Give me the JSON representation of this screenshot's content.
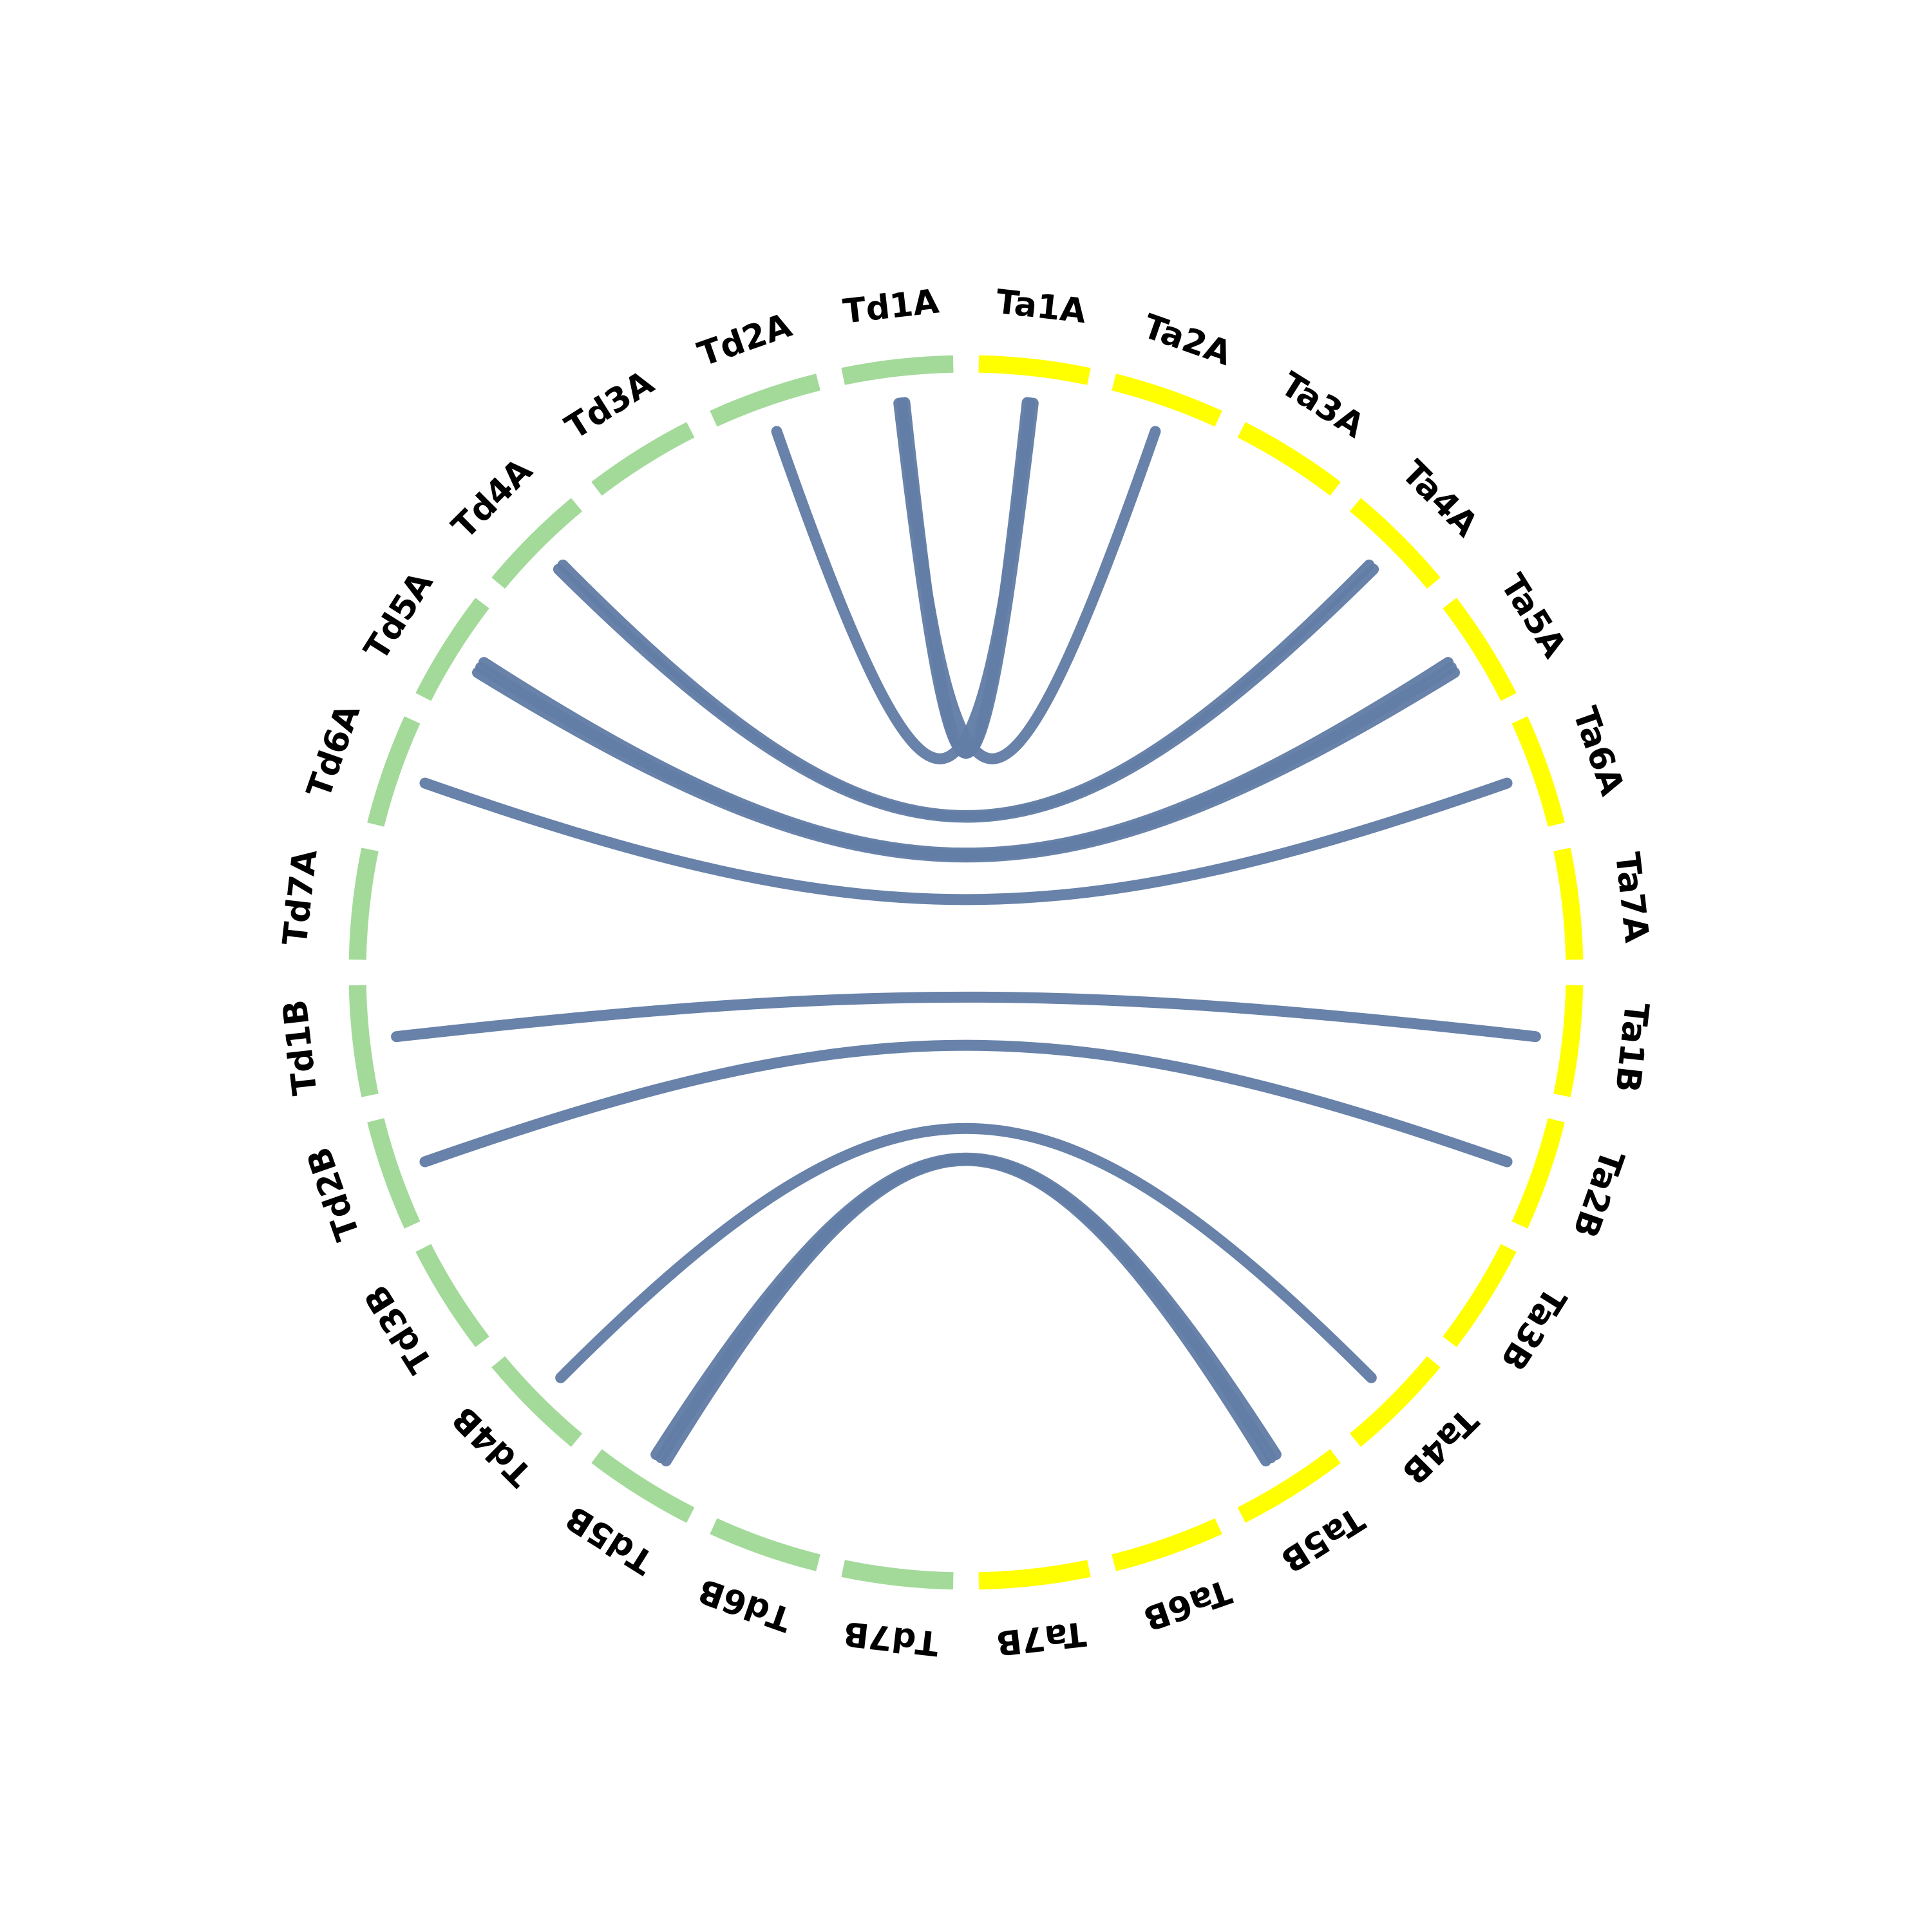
{
  "colors": {
    "group_a": "#a3da9a",
    "group_b": "#ffff00",
    "link": "#637ea6"
  },
  "chart_data": {
    "type": "chord",
    "sectors": [
      {
        "label": "Ta1A",
        "group": "b"
      },
      {
        "label": "Ta2A",
        "group": "b"
      },
      {
        "label": "Ta3A",
        "group": "b"
      },
      {
        "label": "Ta4A",
        "group": "b"
      },
      {
        "label": "Ta5A",
        "group": "b"
      },
      {
        "label": "Ta6A",
        "group": "b"
      },
      {
        "label": "Ta7A",
        "group": "b"
      },
      {
        "label": "Ta1B",
        "group": "b"
      },
      {
        "label": "Ta2B",
        "group": "b"
      },
      {
        "label": "Ta3B",
        "group": "b"
      },
      {
        "label": "Ta4B",
        "group": "b"
      },
      {
        "label": "Ta5B",
        "group": "b"
      },
      {
        "label": "Ta6B",
        "group": "b"
      },
      {
        "label": "Ta7B",
        "group": "b"
      },
      {
        "label": "Td7B",
        "group": "a"
      },
      {
        "label": "Td6B",
        "group": "a"
      },
      {
        "label": "Td5B",
        "group": "a"
      },
      {
        "label": "Td4B",
        "group": "a"
      },
      {
        "label": "Td3B",
        "group": "a"
      },
      {
        "label": "Td2B",
        "group": "a"
      },
      {
        "label": "Td1B",
        "group": "a"
      },
      {
        "label": "Td7A",
        "group": "a"
      },
      {
        "label": "Td6A",
        "group": "a"
      },
      {
        "label": "Td5A",
        "group": "a"
      },
      {
        "label": "Td4A",
        "group": "a"
      },
      {
        "label": "Td3A",
        "group": "a"
      },
      {
        "label": "Td2A",
        "group": "a"
      },
      {
        "label": "Td1A",
        "group": "a"
      }
    ],
    "links": [
      {
        "source": "Td1A",
        "target": "Ta1A",
        "count": 2
      },
      {
        "source": "Td2A",
        "target": "Ta1A"
      },
      {
        "source": "Td1A",
        "target": "Ta2A"
      },
      {
        "source": "Td4A",
        "target": "Ta4A",
        "count": 2
      },
      {
        "source": "Td5A",
        "target": "Ta5A",
        "count": 3
      },
      {
        "source": "Td6A",
        "target": "Ta6A"
      },
      {
        "source": "Td1B",
        "target": "Ta1B"
      },
      {
        "source": "Td2B",
        "target": "Ta2B"
      },
      {
        "source": "Td4B",
        "target": "Ta4B"
      },
      {
        "source": "Td5B",
        "target": "Ta5B",
        "count": 3
      }
    ]
  }
}
